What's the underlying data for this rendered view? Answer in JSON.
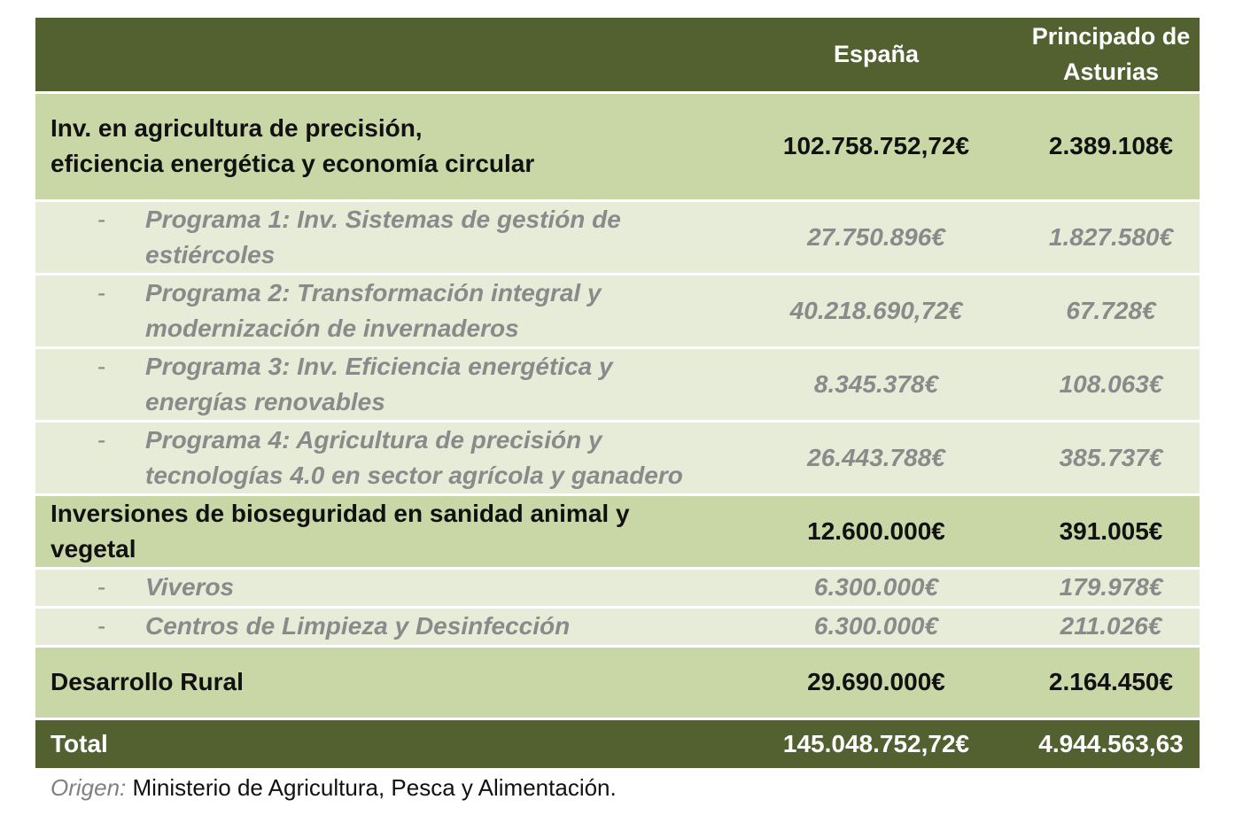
{
  "header": {
    "col1": "",
    "col2": "España",
    "col3_line1": "Principado de",
    "col3_line2": "Asturias"
  },
  "rows": [
    {
      "type": "main",
      "label_lines": [
        "Inv. en agricultura de precisión,",
        "eficiencia energética y economía circular"
      ],
      "espana": "102.758.752,72€",
      "asturias": "2.389.108€"
    },
    {
      "type": "sub",
      "label_lines": [
        "Programa 1: Inv. Sistemas de gestión de",
        "estiércoles"
      ],
      "espana": "27.750.896€",
      "asturias": "1.827.580€"
    },
    {
      "type": "sub",
      "label_lines": [
        "Programa 2: Transformación integral y",
        "modernización de invernaderos"
      ],
      "espana": "40.218.690,72€",
      "asturias": "67.728€"
    },
    {
      "type": "sub",
      "label_lines": [
        "Programa 3: Inv. Eficiencia energética y",
        "energías renovables"
      ],
      "espana": "8.345.378€",
      "asturias": "108.063€"
    },
    {
      "type": "sub",
      "label_lines": [
        "Programa 4: Agricultura de precisión y",
        "tecnologías 4.0 en sector agrícola y ganadero"
      ],
      "espana": "26.443.788€",
      "asturias": "385.737€"
    },
    {
      "type": "main",
      "label_lines": [
        "Inversiones de bioseguridad en sanidad animal y",
        "vegetal"
      ],
      "espana": "12.600.000€",
      "asturias": "391.005€"
    },
    {
      "type": "sub",
      "label_lines": [
        "Viveros"
      ],
      "espana": "6.300.000€",
      "asturias": "179.978€"
    },
    {
      "type": "sub",
      "label_lines": [
        "Centros de Limpieza y Desinfección"
      ],
      "espana": "6.300.000€",
      "asturias": "211.026€"
    },
    {
      "type": "main",
      "label_lines": [
        "Desarrollo Rural"
      ],
      "espana": "29.690.000€",
      "asturias": "2.164.450€"
    }
  ],
  "total": {
    "label": "Total",
    "espana": "145.048.752,72€",
    "asturias": "4.944.563,63"
  },
  "dash": "-",
  "source": {
    "prefix": "Origen:",
    "text": " Ministerio de Agricultura, Pesca y Alimentación."
  },
  "colors": {
    "header_bg": "#536131",
    "main_row_bg": "#c9d6a6",
    "sub_row_bg": "#e7ecd8",
    "sub_text": "#8a8a8a"
  }
}
